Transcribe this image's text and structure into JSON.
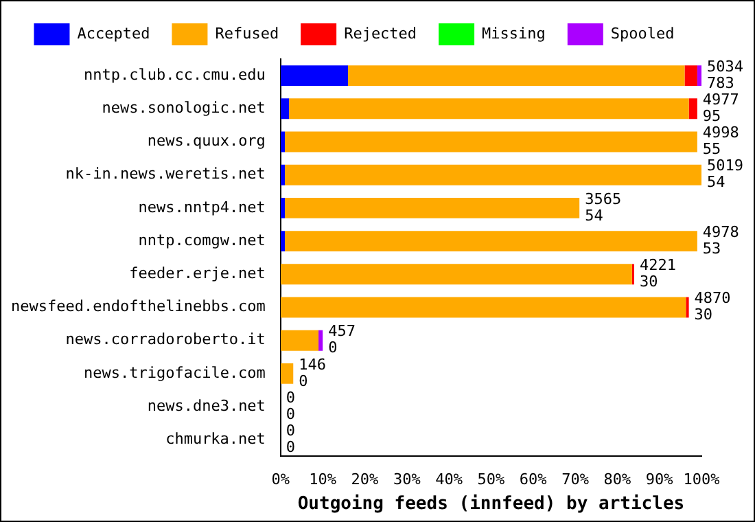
{
  "chart_data": {
    "type": "bar",
    "orientation": "horizontal",
    "stacked": true,
    "xlabel": "Outgoing feeds (innfeed) by articles",
    "categories": [
      "nntp.club.cc.cmu.edu",
      "news.sonologic.net",
      "news.quux.org",
      "nk-in.news.weretis.net",
      "news.nntp4.net",
      "nntp.comgw.net",
      "feeder.erje.net",
      "newsfeed.endofthelinebbs.com",
      "news.corradoroberto.it",
      "news.trigofacile.com",
      "news.dne3.net",
      "chmurka.net"
    ],
    "series": [
      {
        "name": "Accepted",
        "color": "#0000ff",
        "values": [
          16,
          2,
          1,
          1,
          1,
          1,
          0,
          0,
          0,
          0,
          0,
          0
        ]
      },
      {
        "name": "Refused",
        "color": "#ffaa00",
        "values": [
          80,
          95,
          98,
          99,
          70,
          98,
          83.5,
          96.3,
          9,
          3,
          0,
          0
        ]
      },
      {
        "name": "Rejected",
        "color": "#ff0000",
        "values": [
          3,
          2,
          0,
          0,
          0,
          0,
          0.5,
          0.7,
          0,
          0,
          0,
          0
        ]
      },
      {
        "name": "Missing",
        "color": "#00ff00",
        "values": [
          0,
          0,
          0,
          0,
          0,
          0,
          0,
          0,
          0,
          0,
          0,
          0
        ]
      },
      {
        "name": "Spooled",
        "color": "#aa00ff",
        "values": [
          1,
          0,
          0,
          0,
          0,
          0,
          0,
          0,
          1,
          0,
          0,
          0
        ]
      }
    ],
    "annotations": [
      {
        "text": "5034",
        "x": 100,
        "y": "nntp.club.cc.cmu.edu"
      },
      {
        "text": "783",
        "x": 100,
        "y": "nntp.club.cc.cmu.edu"
      },
      {
        "text": "4977",
        "x": 99,
        "y": "news.sonologic.net"
      },
      {
        "text": "95",
        "x": 99,
        "y": "news.sonologic.net"
      },
      {
        "text": "4998",
        "x": 99,
        "y": "news.quux.org"
      },
      {
        "text": "55",
        "x": 99,
        "y": "news.quux.org"
      },
      {
        "text": "5019",
        "x": 100,
        "y": "nk-in.news.weretis.net"
      },
      {
        "text": "54",
        "x": 100,
        "y": "nk-in.news.weretis.net"
      },
      {
        "text": "3565",
        "x": 71,
        "y": "news.nntp4.net"
      },
      {
        "text": "54",
        "x": 71,
        "y": "news.nntp4.net"
      },
      {
        "text": "4978",
        "x": 99,
        "y": "nntp.comgw.net"
      },
      {
        "text": "53",
        "x": 99,
        "y": "nntp.comgw.net"
      },
      {
        "text": "4221",
        "x": 84,
        "y": "feeder.erje.net"
      },
      {
        "text": "30",
        "x": 84,
        "y": "feeder.erje.net"
      },
      {
        "text": "4870",
        "x": 97,
        "y": "newsfeed.endofthelinebbs.com"
      },
      {
        "text": "30",
        "x": 97,
        "y": "newsfeed.endofthelinebbs.com"
      },
      {
        "text": "457",
        "x": 10,
        "y": "news.corradoroberto.it"
      },
      {
        "text": "0",
        "x": 10,
        "y": "news.corradoroberto.it"
      },
      {
        "text": "146",
        "x": 3,
        "y": "news.trigofacile.com"
      },
      {
        "text": "0",
        "x": 3,
        "y": "news.trigofacile.com"
      },
      {
        "text": "0",
        "x": 0,
        "y": "news.dne3.net"
      },
      {
        "text": "0",
        "x": 0,
        "y": "news.dne3.net"
      },
      {
        "text": "0",
        "x": 0,
        "y": "chmurka.net"
      },
      {
        "text": "0",
        "x": 0,
        "y": "chmurka.net"
      }
    ],
    "xlim": [
      0,
      100
    ],
    "xticks": [
      {
        "value": 0,
        "label": "0%"
      },
      {
        "value": 10,
        "label": "10%"
      },
      {
        "value": 20,
        "label": "20%"
      },
      {
        "value": 30,
        "label": "30%"
      },
      {
        "value": 40,
        "label": "40%"
      },
      {
        "value": 50,
        "label": "50%"
      },
      {
        "value": 60,
        "label": "60%"
      },
      {
        "value": 70,
        "label": "70%"
      },
      {
        "value": 80,
        "label": "80%"
      },
      {
        "value": 90,
        "label": "90%"
      },
      {
        "value": 100,
        "label": "100%"
      }
    ],
    "grid": false,
    "legend": "top"
  }
}
